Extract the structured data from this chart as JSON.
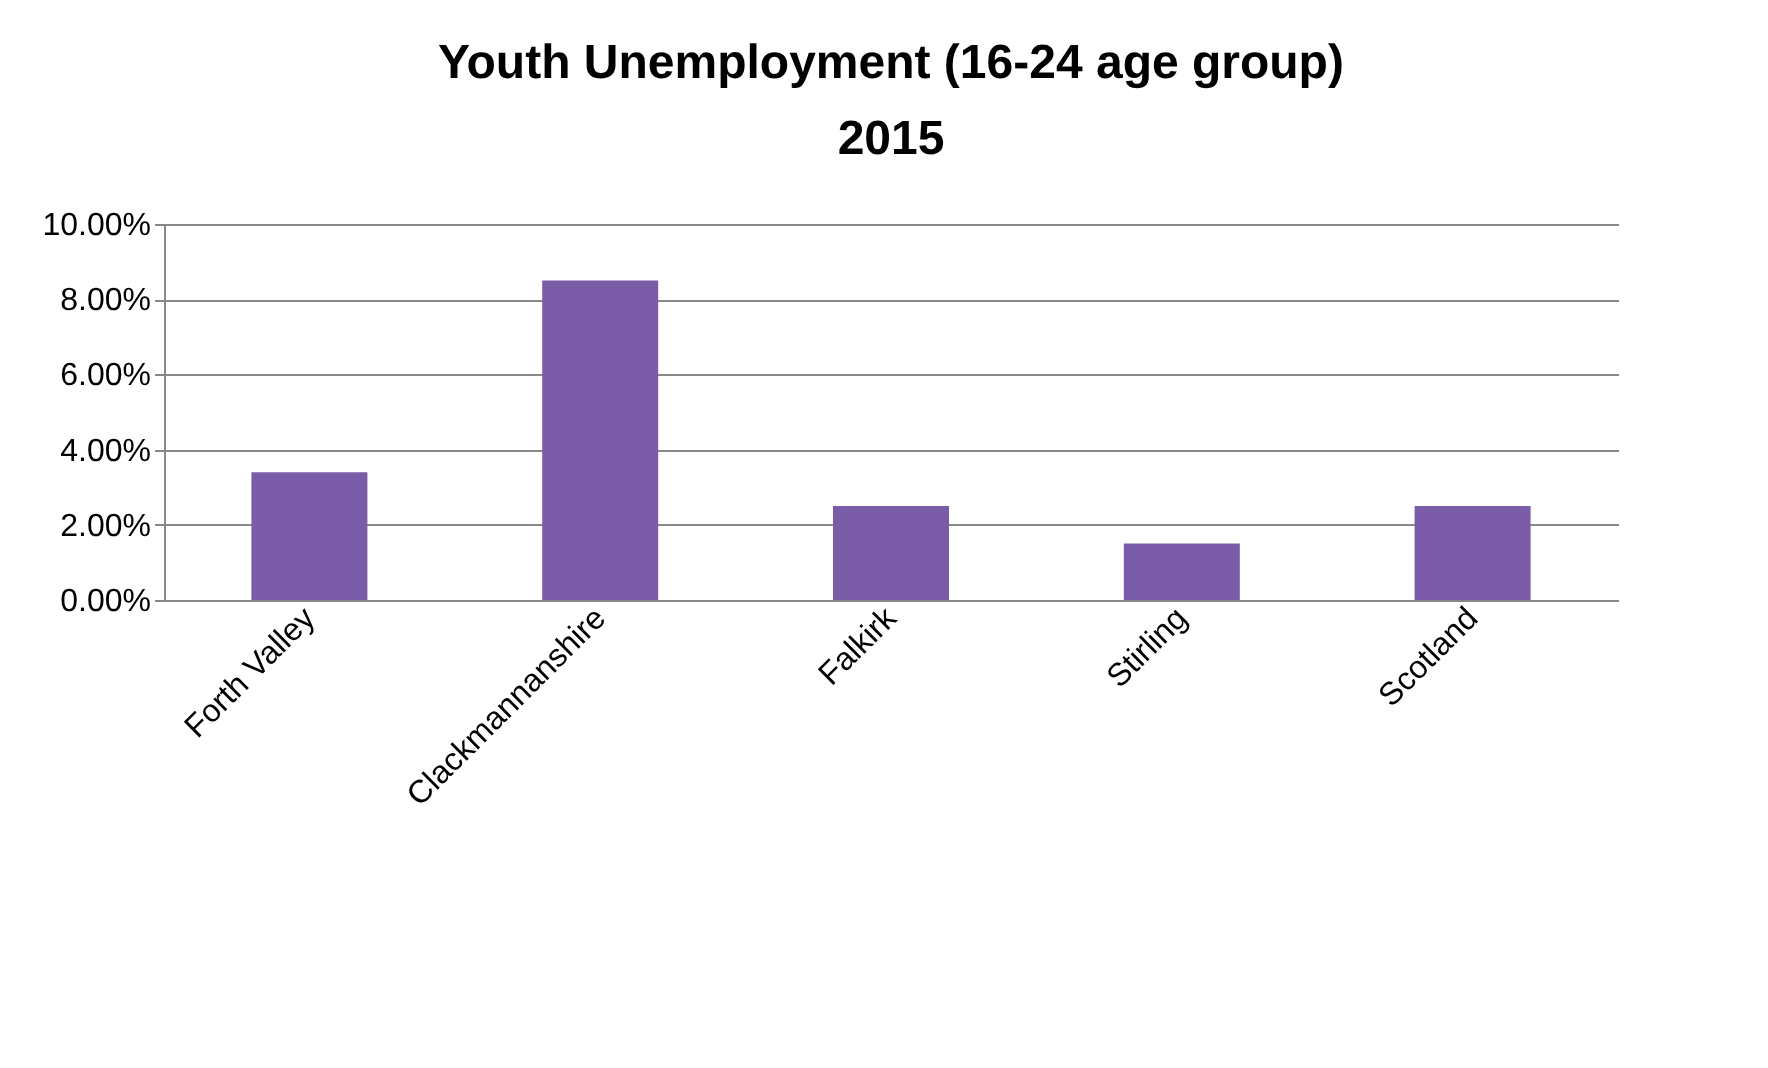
{
  "chart_data": {
    "type": "bar",
    "title": [
      "Youth Unemployment (16-24 age group)",
      "2015"
    ],
    "categories": [
      "Forth Valley",
      "Clackmannanshire",
      "Falkirk",
      "Stirling",
      "Scotland"
    ],
    "values": [
      3.4,
      8.5,
      2.5,
      1.5,
      2.5
    ],
    "color": "#7b5ca8",
    "ylim": [
      0,
      10
    ],
    "yticks": [
      {
        "value": 0,
        "label": "0.00%"
      },
      {
        "value": 2,
        "label": "2.00%"
      },
      {
        "value": 4,
        "label": "4.00%"
      },
      {
        "value": 6,
        "label": "6.00%"
      },
      {
        "value": 8,
        "label": "8.00%"
      },
      {
        "value": 10,
        "label": "10.00%"
      }
    ],
    "grid": "y"
  }
}
